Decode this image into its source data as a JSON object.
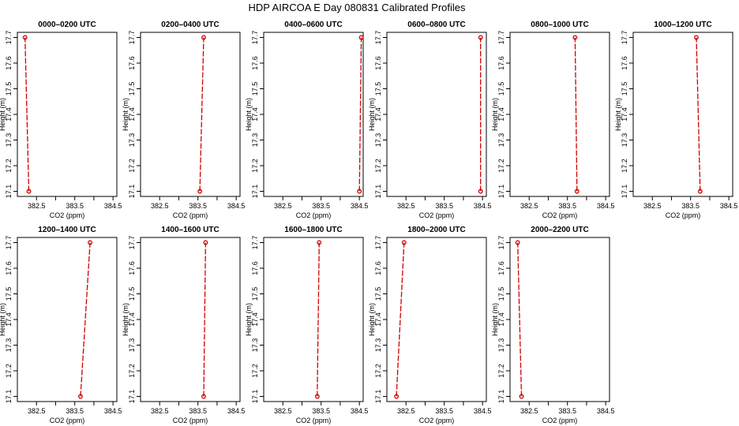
{
  "title": "HDP AIRCOA E  Day 080831  Calibrated Profiles",
  "chart_data": {
    "type": "line",
    "xlabel": "CO2 (ppm)",
    "ylabel": "Height (m)",
    "xlim": [
      382.0,
      384.6
    ],
    "ylim": [
      17.08,
      17.72
    ],
    "xticks": [
      "382.5",
      "383.5",
      "384.5"
    ],
    "yticks": [
      "17.1",
      "17.2",
      "17.3",
      "17.4",
      "17.5",
      "17.6",
      "17.7"
    ],
    "series_color": "#d00000",
    "panels": [
      {
        "title": "0000–0200 UTC",
        "x": [
          382.3,
          382.2
        ],
        "y": [
          17.1,
          17.7
        ]
      },
      {
        "title": "0200–0400 UTC",
        "x": [
          383.55,
          383.65
        ],
        "y": [
          17.1,
          17.7
        ]
      },
      {
        "title": "0400–0600 UTC",
        "x": [
          384.5,
          384.55
        ],
        "y": [
          17.1,
          17.7
        ]
      },
      {
        "title": "0600–0800 UTC",
        "x": [
          384.45,
          384.45
        ],
        "y": [
          17.1,
          17.7
        ]
      },
      {
        "title": "0800–1000 UTC",
        "x": [
          383.75,
          383.7
        ],
        "y": [
          17.1,
          17.7
        ]
      },
      {
        "title": "1000–1200 UTC",
        "x": [
          383.75,
          383.65
        ],
        "y": [
          17.1,
          17.7
        ]
      },
      {
        "title": "1200–1400 UTC",
        "x": [
          383.65,
          383.9
        ],
        "y": [
          17.1,
          17.7
        ]
      },
      {
        "title": "1400–1600 UTC",
        "x": [
          383.65,
          383.7
        ],
        "y": [
          17.1,
          17.7
        ]
      },
      {
        "title": "1600–1800 UTC",
        "x": [
          383.4,
          383.45
        ],
        "y": [
          17.1,
          17.7
        ]
      },
      {
        "title": "1800–2000 UTC",
        "x": [
          382.25,
          382.45
        ],
        "y": [
          17.1,
          17.7
        ]
      },
      {
        "title": "2000–2200 UTC",
        "x": [
          382.3,
          382.2
        ],
        "y": [
          17.1,
          17.7
        ]
      }
    ]
  }
}
